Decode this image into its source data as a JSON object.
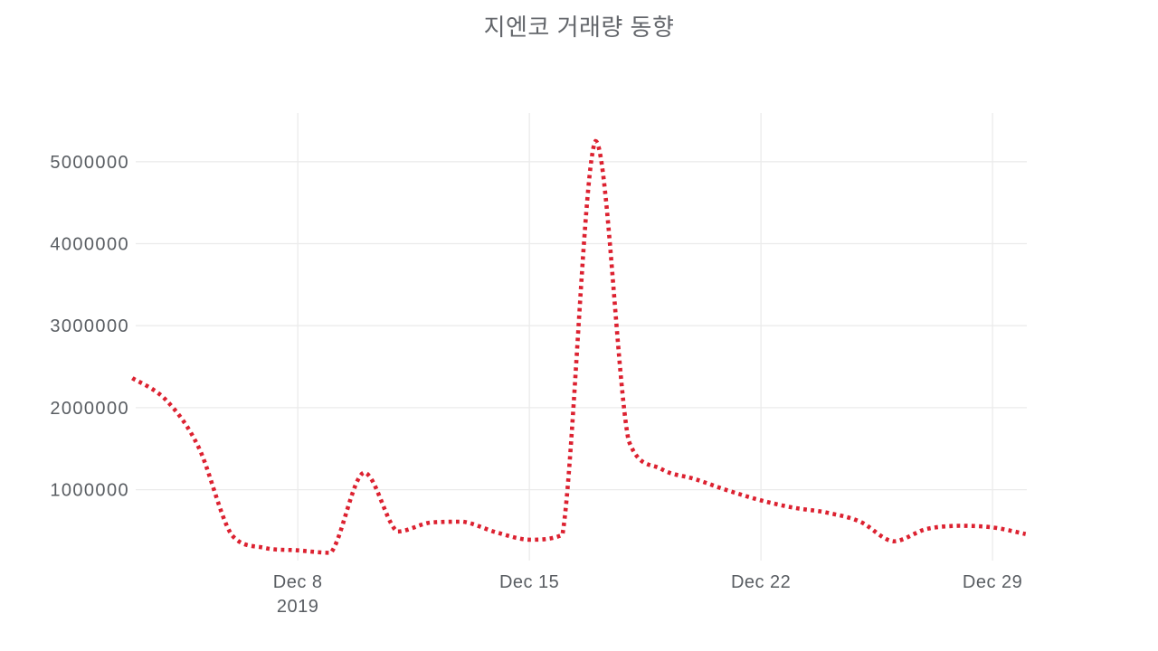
{
  "title": "지엔코 거래량 동향",
  "colors": {
    "line": "#dc2130",
    "grid": "#ebebeb",
    "tick_text": "#595d62",
    "title_text": "#63666b",
    "background": "#ffffff"
  },
  "chart_data": {
    "type": "line",
    "title": "지엔코 거래량 동향",
    "series_name": "거래량",
    "line_style": "dotted",
    "line_color": "#dc2130",
    "smoothing": "spline",
    "legend": "none",
    "grid": true,
    "xlabel": "",
    "ylabel": "",
    "x": [
      "Dec 3",
      "Dec 4",
      "Dec 5",
      "Dec 6",
      "Dec 7",
      "Dec 8",
      "Dec 9",
      "Dec 10",
      "Dec 11",
      "Dec 12",
      "Dec 13",
      "Dec 14",
      "Dec 15",
      "Dec 16",
      "Dec 17",
      "Dec 18",
      "Dec 19",
      "Dec 20",
      "Dec 21",
      "Dec 22",
      "Dec 23",
      "Dec 24",
      "Dec 25",
      "Dec 26",
      "Dec 27",
      "Dec 28",
      "Dec 29",
      "Dec 30"
    ],
    "year": "2019",
    "values": [
      2360000,
      2100000,
      1520000,
      450000,
      290000,
      260000,
      230000,
      1210000,
      490000,
      600000,
      610000,
      480000,
      390000,
      450000,
      5250000,
      1600000,
      1250000,
      1130000,
      990000,
      870000,
      780000,
      720000,
      610000,
      370000,
      520000,
      560000,
      540000,
      460000
    ],
    "x_tick_labels": [
      "Dec 8",
      "Dec 15",
      "Dec 22",
      "Dec 29"
    ],
    "x_tick_sublabel": "2019",
    "x_tick_sublabel_under": "Dec 8",
    "y_ticks": [
      1000000,
      2000000,
      3000000,
      4000000,
      5000000
    ],
    "y_tick_labels": [
      "1000000",
      "2000000",
      "3000000",
      "4000000",
      "5000000"
    ],
    "ylim": [
      140000,
      5590000
    ]
  }
}
